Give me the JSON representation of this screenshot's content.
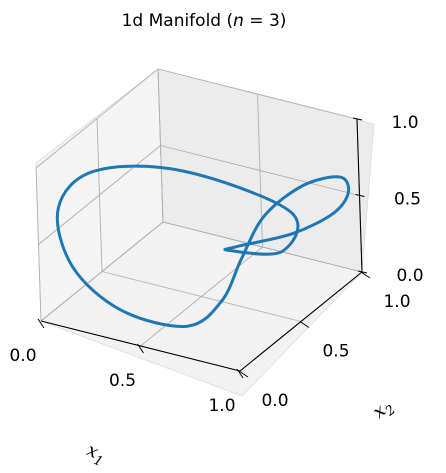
{
  "chart_data": {
    "type": "line",
    "projection": "3d",
    "title": {
      "prefix": "1d Manifold (",
      "var": "n",
      "suffix": " = 3)"
    },
    "xlabel": {
      "base": "x",
      "sub": "1"
    },
    "ylabel": {
      "base": "x",
      "sub": "2"
    },
    "zlabel": "",
    "xlim": [
      0,
      1
    ],
    "ylim": [
      0,
      1
    ],
    "zlim": [
      0,
      1
    ],
    "x_ticks": [
      "0.0",
      "0.5",
      "1.0"
    ],
    "y_ticks": [
      "0.0",
      "0.5",
      "1.0"
    ],
    "z_ticks": [
      "0.0",
      "0.5",
      "1.0"
    ],
    "grid": true,
    "line_color": "#1f77b4",
    "series": [
      {
        "closed": true,
        "points": [
          [
            0.99,
            0.46,
            0.74
          ],
          [
            0.54,
            0.32,
            0.95
          ],
          [
            0.15,
            0.23,
            0.88
          ],
          [
            0.03,
            0.12,
            0.67
          ],
          [
            0.13,
            0.06,
            0.36
          ],
          [
            0.38,
            0.05,
            0.16
          ],
          [
            0.69,
            0.08,
            0.14
          ],
          [
            0.82,
            0.16,
            0.3
          ],
          [
            0.83,
            0.31,
            0.48
          ],
          [
            0.82,
            0.52,
            0.62
          ],
          [
            0.9,
            0.71,
            0.72
          ],
          [
            0.985,
            0.87,
            0.7
          ],
          [
            0.97,
            0.96,
            0.54
          ],
          [
            0.88,
            0.98,
            0.36
          ],
          [
            0.73,
            0.88,
            0.24
          ],
          [
            0.61,
            0.63,
            0.28
          ],
          [
            0.68,
            0.44,
            0.4
          ],
          [
            0.96,
            0.43,
            0.49
          ],
          [
            0.99,
            0.46,
            0.74
          ]
        ]
      }
    ]
  }
}
